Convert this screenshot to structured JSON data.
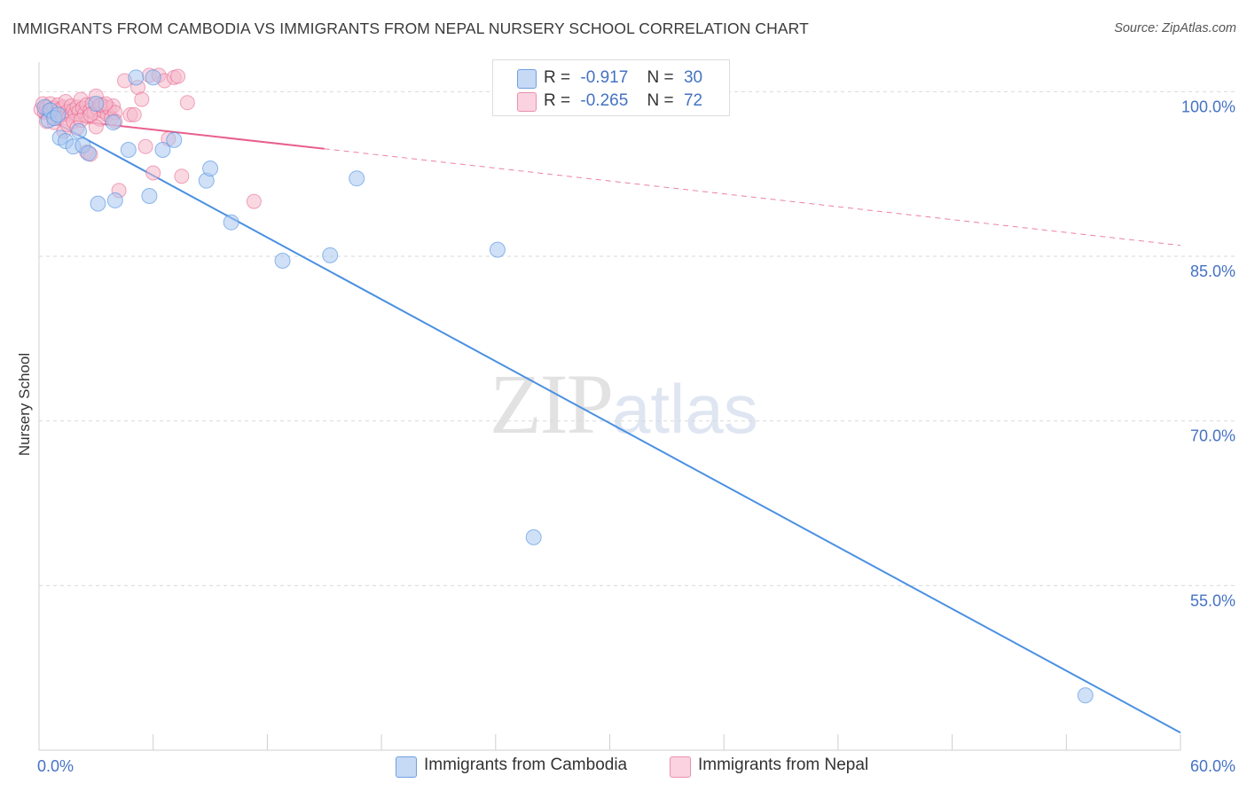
{
  "header": {
    "title": "IMMIGRANTS FROM CAMBODIA VS IMMIGRANTS FROM NEPAL NURSERY SCHOOL CORRELATION CHART",
    "source": "Source: ZipAtlas.com"
  },
  "watermark": {
    "zip": "ZIP",
    "atlas": "atlas"
  },
  "legend": {
    "rows": [
      {
        "r_label": "R =",
        "r_value": "-0.917",
        "n_label": "N =",
        "n_value": "30",
        "color": "#a9c7ef"
      },
      {
        "r_label": "R =",
        "r_value": "-0.265",
        "n_label": "N =",
        "n_value": "72",
        "color": "#f4b8cb"
      }
    ]
  },
  "bottom_legend": {
    "items": [
      {
        "label": "Immigrants from Cambodia",
        "color": "#a9c7ef"
      },
      {
        "label": "Immigrants from Nepal",
        "color": "#f4b8cb"
      }
    ]
  },
  "chart_data": {
    "type": "scatter",
    "title": "IMMIGRANTS FROM CAMBODIA VS IMMIGRANTS FROM NEPAL NURSERY SCHOOL CORRELATION CHART",
    "xlabel": "",
    "ylabel": "Nursery School",
    "xlim": [
      0,
      60
    ],
    "ylim": [
      40,
      102.7
    ],
    "x_tick_labels": [
      "0.0%",
      "60.0%"
    ],
    "y_ticks": [
      55,
      70,
      85,
      100
    ],
    "y_tick_labels": [
      "55.0%",
      "70.0%",
      "85.0%",
      "100.0%"
    ],
    "grid": true,
    "legend_position": "top-center",
    "series": [
      {
        "name": "Immigrants from Cambodia",
        "color": "#4a90e2",
        "fill": "#a9c7ef",
        "points": [
          [
            0.3,
            98.6
          ],
          [
            0.5,
            97.4
          ],
          [
            0.6,
            98.3
          ],
          [
            0.8,
            97.6
          ],
          [
            1.0,
            97.9
          ],
          [
            1.1,
            95.8
          ],
          [
            1.4,
            95.5
          ],
          [
            1.8,
            95.0
          ],
          [
            2.1,
            96.4
          ],
          [
            2.3,
            95.1
          ],
          [
            2.6,
            94.4
          ],
          [
            3.0,
            98.9
          ],
          [
            3.1,
            89.8
          ],
          [
            3.9,
            97.2
          ],
          [
            4.0,
            90.1
          ],
          [
            4.7,
            94.7
          ],
          [
            5.1,
            101.3
          ],
          [
            5.8,
            90.5
          ],
          [
            6.0,
            101.3
          ],
          [
            6.5,
            94.7
          ],
          [
            7.1,
            95.6
          ],
          [
            8.8,
            91.9
          ],
          [
            9.0,
            93.0
          ],
          [
            10.1,
            88.1
          ],
          [
            12.8,
            84.6
          ],
          [
            15.3,
            85.1
          ],
          [
            16.7,
            92.1
          ],
          [
            24.1,
            85.6
          ],
          [
            26.0,
            59.4
          ],
          [
            55.0,
            45.0
          ]
        ],
        "trend": {
          "x": [
            0,
            60
          ],
          "y": [
            98.0,
            41.6
          ],
          "style": "solid"
        }
      },
      {
        "name": "Immigrants from Nepal",
        "color": "#e8608c",
        "fill": "#f4b8cb",
        "points": [
          [
            0.1,
            98.4
          ],
          [
            0.2,
            98.9
          ],
          [
            0.3,
            98.1
          ],
          [
            0.4,
            98.6
          ],
          [
            0.5,
            98.3
          ],
          [
            0.6,
            98.9
          ],
          [
            0.7,
            98.2
          ],
          [
            0.8,
            98.5
          ],
          [
            0.9,
            98.1
          ],
          [
            1.0,
            98.8
          ],
          [
            1.1,
            98.4
          ],
          [
            1.2,
            97.9
          ],
          [
            1.3,
            98.6
          ],
          [
            1.4,
            99.1
          ],
          [
            1.5,
            98.2
          ],
          [
            1.6,
            97.8
          ],
          [
            1.7,
            98.7
          ],
          [
            1.8,
            98.3
          ],
          [
            1.9,
            98.0
          ],
          [
            2.0,
            98.6
          ],
          [
            2.1,
            98.2
          ],
          [
            2.2,
            99.3
          ],
          [
            2.3,
            98.5
          ],
          [
            2.4,
            98.0
          ],
          [
            2.5,
            98.8
          ],
          [
            2.6,
            97.7
          ],
          [
            2.7,
            98.3
          ],
          [
            2.8,
            98.9
          ],
          [
            2.9,
            98.1
          ],
          [
            3.0,
            99.6
          ],
          [
            3.1,
            98.4
          ],
          [
            3.2,
            97.5
          ],
          [
            3.3,
            98.8
          ],
          [
            3.4,
            98.2
          ],
          [
            3.5,
            98.6
          ],
          [
            3.6,
            97.9
          ],
          [
            3.7,
            98.5
          ],
          [
            3.8,
            97.6
          ],
          [
            3.9,
            98.7
          ],
          [
            4.0,
            98.1
          ],
          [
            0.4,
            97.3
          ],
          [
            0.8,
            97.2
          ],
          [
            1.0,
            97.6
          ],
          [
            1.3,
            96.4
          ],
          [
            1.5,
            97.0
          ],
          [
            1.8,
            97.3
          ],
          [
            2.0,
            96.7
          ],
          [
            2.2,
            97.4
          ],
          [
            2.5,
            94.5
          ],
          [
            2.7,
            94.3
          ],
          [
            3.0,
            96.8
          ],
          [
            3.2,
            98.8
          ],
          [
            3.5,
            98.9
          ],
          [
            4.0,
            97.3
          ],
          [
            4.5,
            101.0
          ],
          [
            4.8,
            97.9
          ],
          [
            5.0,
            97.9
          ],
          [
            5.2,
            100.4
          ],
          [
            5.4,
            99.3
          ],
          [
            5.6,
            95.0
          ],
          [
            5.8,
            101.5
          ],
          [
            6.0,
            92.6
          ],
          [
            6.3,
            101.5
          ],
          [
            6.6,
            101.0
          ],
          [
            6.8,
            95.7
          ],
          [
            7.1,
            101.3
          ],
          [
            7.3,
            101.4
          ],
          [
            7.5,
            92.3
          ],
          [
            7.8,
            99.0
          ],
          [
            4.2,
            91.0
          ],
          [
            11.3,
            90.0
          ],
          [
            2.7,
            97.9
          ]
        ],
        "trend": {
          "x": [
            0,
            15.0
          ],
          "y": [
            97.7,
            94.8
          ],
          "style": "solid"
        },
        "trend_extension": {
          "x": [
            15.0,
            60
          ],
          "y": [
            94.8,
            86.0
          ],
          "style": "dashed"
        }
      }
    ]
  }
}
